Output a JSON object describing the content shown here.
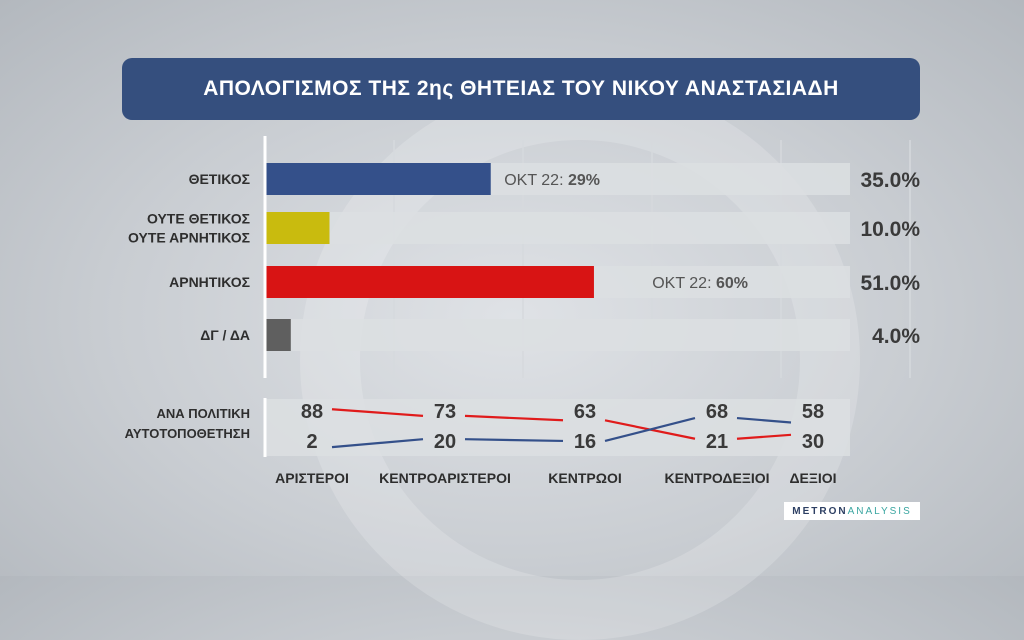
{
  "title": "ΑΠΟΛΟΓΙΣΜΟΣ ΤΗΣ 2ης ΘΗΤΕΙΑΣ ΤΟΥ ΝΙΚΟΥ ΑΝΑΣΤΑΣΙΑΔΗ",
  "logo": {
    "part1": "METRON",
    "part2": "ANALYSIS"
  },
  "chart_data": [
    {
      "type": "bar",
      "orientation": "horizontal",
      "categories": [
        [
          "ΘΕΤΙΚΟΣ"
        ],
        [
          "ΟΥΤΕ ΘΕΤΙΚΟΣ",
          "ΟΥΤΕ ΑΡΝΗΤΙΚΟΣ"
        ],
        [
          "ΑΡΝΗΤΙΚΟΣ"
        ],
        [
          "ΔΓ / ΔΑ"
        ]
      ],
      "values": [
        35.0,
        10.0,
        51.0,
        4.0
      ],
      "value_labels": [
        "35.0%",
        "10.0%",
        "51.0%",
        "4.0%"
      ],
      "colors": [
        "#34508a",
        "#c9bb0e",
        "#d81414",
        "#5f5f5f"
      ],
      "annotations": [
        {
          "bar": 0,
          "prefix": "ΟΚΤ 22: ",
          "value": "29%"
        },
        {
          "bar": 2,
          "prefix": "ΟΚΤ 22: ",
          "value": "60%"
        }
      ],
      "xlim": [
        0,
        100
      ],
      "grid": true
    },
    {
      "type": "line",
      "label": [
        "ΑΝΑ ΠΟΛΙΤΙΚΗ",
        "ΑΥΤΟΤΟΠΟΘΕΤΗΣΗ"
      ],
      "categories": [
        "ΑΡΙΣΤΕΡΟΙ",
        "ΚΕΝΤΡΟΑΡΙΣΤΕΡΟΙ",
        "ΚΕΝΤΡΩΟΙ",
        "ΚΕΝΤΡΟΔΕΞΙΟΙ",
        "ΔΕΞΙΟΙ"
      ],
      "series": [
        {
          "values": [
            88,
            73,
            63,
            21,
            30
          ],
          "color": "#e01b1b"
        },
        {
          "values": [
            2,
            20,
            16,
            68,
            58
          ],
          "color": "#34508a"
        }
      ]
    }
  ]
}
